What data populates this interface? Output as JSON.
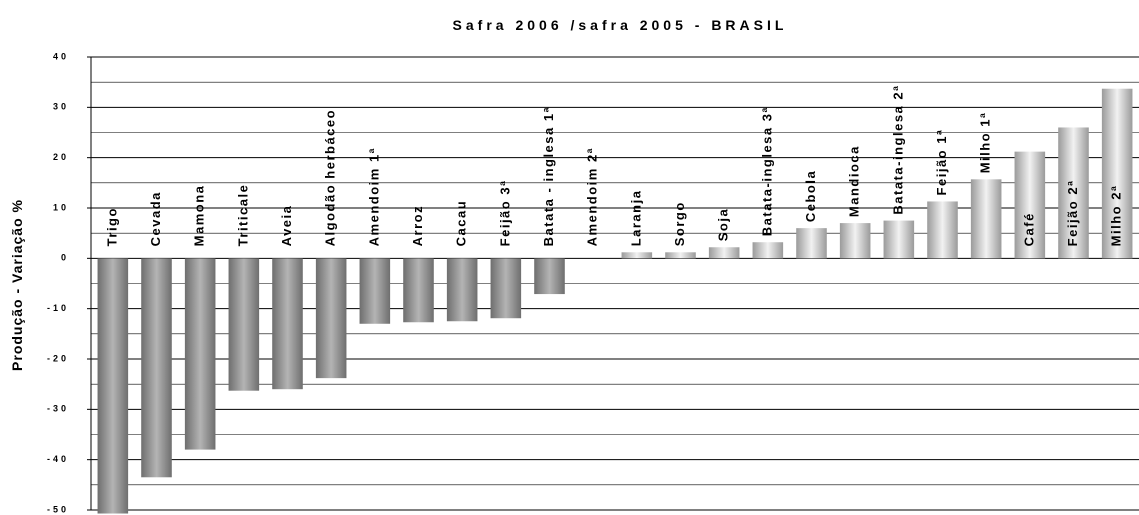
{
  "chart_data": {
    "type": "bar",
    "title": "Safra 2006 /safra 2005 - BRASIL",
    "y_label": "Produção - Variação %",
    "categories": [
      "Trigo",
      "Cevada",
      "Mamona",
      "Triticale",
      "Aveia",
      "Algodão herbáceo",
      "Amendoim 1ª",
      "Arroz",
      "Cacau",
      "Feijão 3ª",
      "Batata - inglesa 1ª",
      "Amendoim 2ª",
      "Laranja",
      "Sorgo",
      "Soja",
      "Batata-inglesa 3ª",
      "Cebola",
      "Mandioca",
      "Batata-inglesa 2ª",
      "Feijão 1ª",
      "Milho 1ª",
      "Café",
      "Feijão 2ª",
      "Milho 2ª"
    ],
    "values": [
      -50.7,
      -43.5,
      -38,
      -26.3,
      -26,
      -23.8,
      -13,
      -12.7,
      -12.5,
      -11.9,
      -7.1,
      0,
      1.2,
      1.2,
      2.2,
      3.2,
      6,
      7,
      7.5,
      11.3,
      15.7,
      21.2,
      26,
      33.7
    ],
    "color": "#8a8a8a",
    "ylim": [
      -50,
      40
    ],
    "yticks": [
      -50,
      -40,
      -30,
      -20,
      -10,
      0,
      10,
      20,
      30,
      40
    ],
    "grid": true
  }
}
